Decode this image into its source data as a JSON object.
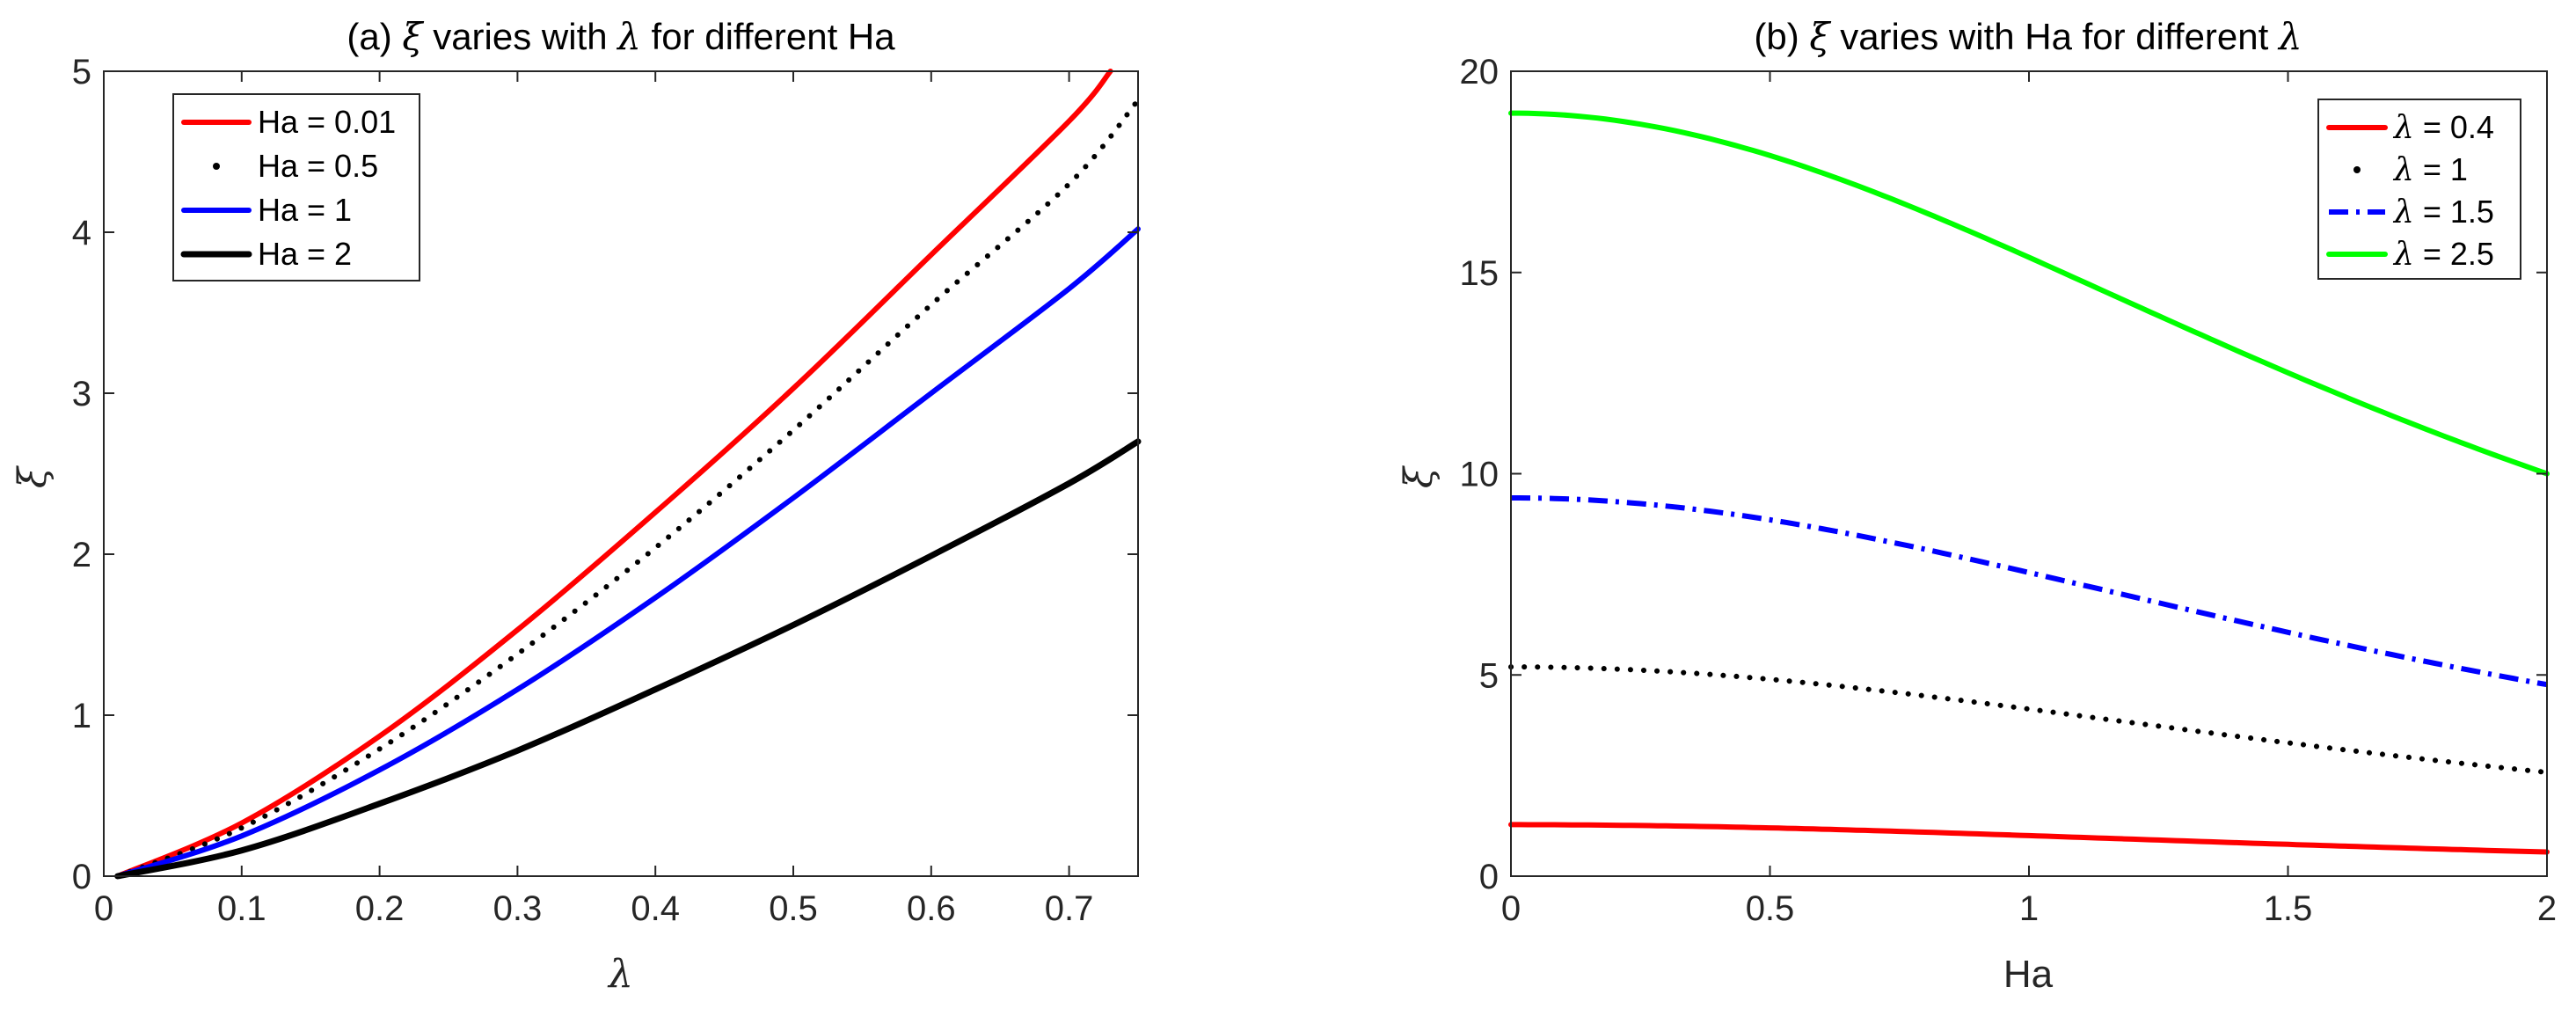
{
  "chart_data": [
    {
      "type": "line",
      "title_prefix": "(a) ",
      "title_symbol": "ξ",
      "title_middle": " varies with ",
      "title_symbol2": "λ",
      "title_suffix": " for different Ha",
      "xlabel": "λ",
      "ylabel": "ξ",
      "xlim": [
        0,
        0.75
      ],
      "ylim": [
        0,
        5
      ],
      "xticks": [
        0,
        0.1,
        0.2,
        0.3,
        0.4,
        0.5,
        0.6,
        0.7
      ],
      "xtick_labels": [
        "0",
        "0.1",
        "0.2",
        "0.3",
        "0.4",
        "0.5",
        "0.6",
        "0.7"
      ],
      "yticks": [
        0,
        1,
        2,
        3,
        4,
        5
      ],
      "ytick_labels": [
        "0",
        "1",
        "2",
        "3",
        "4",
        "5"
      ],
      "legend_position": "top-left",
      "x_start": 0.01,
      "x_end": 0.75,
      "series": [
        {
          "name": "Ha = 0.01",
          "legend_label": "Ha = 0.01",
          "color": "#ff0000",
          "style": "solid",
          "values_at": {
            "0.1": 0.33,
            "0.2": 0.87,
            "0.3": 1.53,
            "0.4": 2.26,
            "0.5": 3.03,
            "0.6": 3.86,
            "0.7": 4.69,
            "0.73": 5.0
          }
        },
        {
          "name": "Ha = 0.5",
          "legend_label": "Ha = 0.5",
          "color": "#000000",
          "style": "dotted",
          "values_at": {
            "0.1": 0.3,
            "0.2": 0.79,
            "0.3": 1.38,
            "0.4": 2.04,
            "0.5": 2.77,
            "0.6": 3.55,
            "0.7": 4.3,
            "0.75": 4.82
          }
        },
        {
          "name": "Ha = 1",
          "legend_label": "Ha = 1",
          "color": "#0000ff",
          "style": "solid",
          "values_at": {
            "0.1": 0.25,
            "0.2": 0.66,
            "0.3": 1.16,
            "0.4": 1.73,
            "0.5": 2.35,
            "0.6": 3.0,
            "0.7": 3.65,
            "0.75": 4.02
          }
        },
        {
          "name": "Ha = 2",
          "legend_label": "Ha = 2",
          "color": "#000000",
          "style": "solid-thick",
          "values_at": {
            "0.1": 0.16,
            "0.2": 0.45,
            "0.3": 0.78,
            "0.4": 1.16,
            "0.5": 1.56,
            "0.6": 1.99,
            "0.7": 2.44,
            "0.75": 2.7
          }
        }
      ]
    },
    {
      "type": "line",
      "title_prefix": "(b) ",
      "title_symbol": "ξ",
      "title_middle": " varies with Ha for different ",
      "title_symbol2": "λ",
      "title_suffix": "",
      "xlabel": "Ha",
      "ylabel": "ξ",
      "xlim": [
        0,
        2
      ],
      "ylim": [
        0,
        20
      ],
      "xticks": [
        0,
        0.5,
        1,
        1.5,
        2
      ],
      "xtick_labels": [
        "0",
        "0.5",
        "1",
        "1.5",
        "2"
      ],
      "yticks": [
        0,
        5,
        10,
        15,
        20
      ],
      "ytick_labels": [
        "0",
        "5",
        "10",
        "15",
        "20"
      ],
      "legend_position": "top-right",
      "series": [
        {
          "name": "λ = 0.4",
          "legend_symbol": "λ",
          "legend_value": " = 0.4",
          "color": "#ff0000",
          "style": "solid",
          "ha0": 1.28,
          "ha2": 0.6
        },
        {
          "name": "λ = 1",
          "legend_symbol": "λ",
          "legend_value": " = 1",
          "color": "#000000",
          "style": "dotted",
          "ha0": 5.2,
          "ha2": 2.58
        },
        {
          "name": "λ = 1.5",
          "legend_symbol": "λ",
          "legend_value": " = 1.5",
          "color": "#0000ff",
          "style": "dashdot",
          "ha0": 9.4,
          "ha2": 4.76
        },
        {
          "name": "λ = 2.5",
          "legend_symbol": "λ",
          "legend_value": " = 2.5",
          "color": "#00ff00",
          "style": "solid",
          "ha0": 18.96,
          "ha2": 10.0
        }
      ]
    }
  ]
}
